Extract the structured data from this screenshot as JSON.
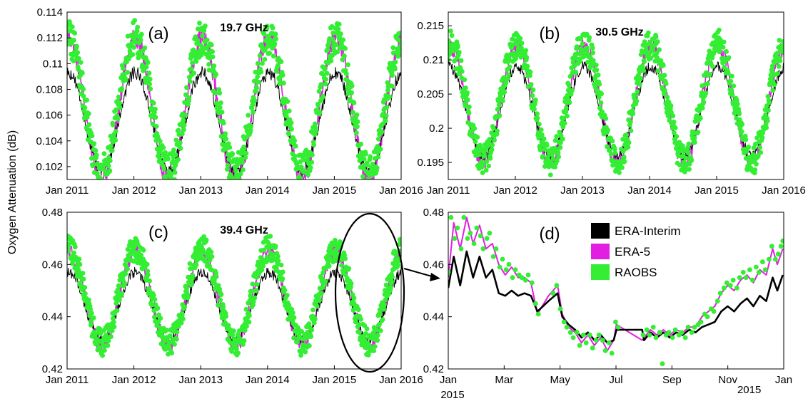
{
  "figure": {
    "ylabel": "Oxygen Attenuation (dB)",
    "colors": {
      "era_interim": "#000000",
      "era5": "#e21ee2",
      "raobs": "#33ee33"
    }
  },
  "chart_data": [
    {
      "id": "a",
      "type": "line",
      "panel_label": "(a)",
      "frequency": "19.7 GHz",
      "xlim": [
        "2011-01-01",
        "2016-01-01"
      ],
      "xticks": [
        "Jan 2011",
        "Jan 2012",
        "Jan 2013",
        "Jan 2014",
        "Jan 2015",
        "Jan 2016"
      ],
      "ylim": [
        0.101,
        0.114
      ],
      "yticks": [
        "0.102",
        "0.104",
        "0.106",
        "0.108",
        "0.11",
        "0.112",
        "0.114"
      ],
      "seasonal": {
        "peak_month": 1.0,
        "era5": {
          "mean": 0.1065,
          "amp": 0.0055,
          "noise": 0.0008
        },
        "erai": {
          "mean": 0.1055,
          "amp": 0.0038,
          "noise": 0.0005
        },
        "raobs": {
          "mean": 0.1068,
          "amp": 0.0052,
          "noise": 0.0014
        }
      },
      "series": [
        {
          "name": "ERA-Interim",
          "color": "#000000"
        },
        {
          "name": "ERA-5",
          "color": "#e21ee2"
        },
        {
          "name": "RAOBS",
          "color": "#33ee33"
        }
      ]
    },
    {
      "id": "b",
      "type": "line",
      "panel_label": "(b)",
      "frequency": "30.5 GHz",
      "xlim": [
        "2011-01-01",
        "2016-01-01"
      ],
      "xticks": [
        "Jan 2011",
        "Jan 2012",
        "Jan 2013",
        "Jan 2014",
        "Jan 2015",
        "Jan 2016"
      ],
      "ylim": [
        0.1925,
        0.217
      ],
      "yticks": [
        "0.195",
        "0.2",
        "0.205",
        "0.21",
        "0.215"
      ],
      "seasonal": {
        "peak_month": 1.0,
        "era5": {
          "mean": 0.2035,
          "amp": 0.0085,
          "noise": 0.0012
        },
        "erai": {
          "mean": 0.2025,
          "amp": 0.0065,
          "noise": 0.0008
        },
        "raobs": {
          "mean": 0.2038,
          "amp": 0.0085,
          "noise": 0.0022
        }
      },
      "series": [
        {
          "name": "ERA-Interim",
          "color": "#000000"
        },
        {
          "name": "ERA-5",
          "color": "#e21ee2"
        },
        {
          "name": "RAOBS",
          "color": "#33ee33"
        }
      ]
    },
    {
      "id": "c",
      "type": "line",
      "panel_label": "(c)",
      "frequency": "39.4 GHz",
      "xlim": [
        "2011-01-01",
        "2016-01-01"
      ],
      "xticks": [
        "Jan 2011",
        "Jan 2012",
        "Jan 2013",
        "Jan 2014",
        "Jan 2015",
        "Jan 2016"
      ],
      "ylim": [
        0.42,
        0.48
      ],
      "yticks": [
        "0.42",
        "0.44",
        "0.46",
        "0.48"
      ],
      "seasonal": {
        "peak_month": 1.0,
        "era5": {
          "mean": 0.447,
          "amp": 0.018,
          "noise": 0.003
        },
        "erai": {
          "mean": 0.444,
          "amp": 0.013,
          "noise": 0.002
        },
        "raobs": {
          "mean": 0.448,
          "amp": 0.018,
          "noise": 0.005
        }
      },
      "series": [
        {
          "name": "ERA-Interim",
          "color": "#000000"
        },
        {
          "name": "ERA-5",
          "color": "#e21ee2"
        },
        {
          "name": "RAOBS",
          "color": "#33ee33"
        }
      ]
    },
    {
      "id": "d",
      "type": "line",
      "panel_label": "(d)",
      "xlim": [
        "2015-01-01",
        "2016-01-01"
      ],
      "xticks": [
        "Jan",
        "Mar",
        "May",
        "Jul",
        "Sep",
        "Nov",
        "Jan"
      ],
      "xticks_sub": [
        "2015",
        "2015"
      ],
      "ylim": [
        0.42,
        0.48
      ],
      "yticks": [
        "0.42",
        "0.44",
        "0.46",
        "0.48"
      ],
      "legend_position": "top-right",
      "series": [
        {
          "name": "ERA-Interim",
          "color": "#000000",
          "points": [
            [
              "2015-01-01",
              0.451
            ],
            [
              "2015-01-07",
              0.463
            ],
            [
              "2015-01-14",
              0.452
            ],
            [
              "2015-01-21",
              0.465
            ],
            [
              "2015-01-28",
              0.455
            ],
            [
              "2015-02-04",
              0.463
            ],
            [
              "2015-02-11",
              0.455
            ],
            [
              "2015-02-18",
              0.458
            ],
            [
              "2015-02-25",
              0.449
            ],
            [
              "2015-03-04",
              0.448
            ],
            [
              "2015-03-11",
              0.45
            ],
            [
              "2015-03-18",
              0.448
            ],
            [
              "2015-03-25",
              0.449
            ],
            [
              "2015-04-01",
              0.448
            ],
            [
              "2015-04-08",
              0.442
            ],
            [
              "2015-04-20",
              0.446
            ],
            [
              "2015-04-30",
              0.449
            ],
            [
              "2015-05-05",
              0.44
            ],
            [
              "2015-05-12",
              0.437
            ],
            [
              "2015-05-19",
              0.435
            ],
            [
              "2015-05-26",
              0.432
            ],
            [
              "2015-06-02",
              0.434
            ],
            [
              "2015-06-09",
              0.431
            ],
            [
              "2015-06-16",
              0.433
            ],
            [
              "2015-06-23",
              0.43
            ],
            [
              "2015-06-30",
              0.431
            ],
            [
              "2015-07-03",
              0.435
            ],
            [
              "2015-07-31",
              0.435
            ],
            [
              "2015-08-02",
              0.431
            ],
            [
              "2015-08-09",
              0.434
            ],
            [
              "2015-08-16",
              0.432
            ],
            [
              "2015-08-23",
              0.434
            ],
            [
              "2015-08-30",
              0.432
            ],
            [
              "2015-09-06",
              0.434
            ],
            [
              "2015-09-13",
              0.433
            ],
            [
              "2015-09-20",
              0.435
            ],
            [
              "2015-09-27",
              0.434
            ],
            [
              "2015-10-04",
              0.436
            ],
            [
              "2015-10-11",
              0.437
            ],
            [
              "2015-10-18",
              0.438
            ],
            [
              "2015-10-25",
              0.442
            ],
            [
              "2015-11-01",
              0.444
            ],
            [
              "2015-11-08",
              0.442
            ],
            [
              "2015-11-15",
              0.445
            ],
            [
              "2015-11-22",
              0.447
            ],
            [
              "2015-11-29",
              0.444
            ],
            [
              "2015-12-06",
              0.448
            ],
            [
              "2015-12-13",
              0.446
            ],
            [
              "2015-12-20",
              0.455
            ],
            [
              "2015-12-25",
              0.45
            ],
            [
              "2015-12-31",
              0.456
            ]
          ]
        },
        {
          "name": "ERA-5",
          "color": "#e21ee2",
          "points": [
            [
              "2015-01-01",
              0.455
            ],
            [
              "2015-01-07",
              0.476
            ],
            [
              "2015-01-14",
              0.466
            ],
            [
              "2015-01-21",
              0.478
            ],
            [
              "2015-01-28",
              0.468
            ],
            [
              "2015-02-04",
              0.475
            ],
            [
              "2015-02-11",
              0.466
            ],
            [
              "2015-02-18",
              0.468
            ],
            [
              "2015-02-25",
              0.46
            ],
            [
              "2015-03-04",
              0.456
            ],
            [
              "2015-03-11",
              0.459
            ],
            [
              "2015-03-18",
              0.455
            ],
            [
              "2015-03-25",
              0.455
            ],
            [
              "2015-04-01",
              0.453
            ],
            [
              "2015-04-08",
              0.441
            ],
            [
              "2015-04-20",
              0.448
            ],
            [
              "2015-04-30",
              0.452
            ],
            [
              "2015-05-05",
              0.441
            ],
            [
              "2015-05-12",
              0.436
            ],
            [
              "2015-05-19",
              0.434
            ],
            [
              "2015-05-26",
              0.43
            ],
            [
              "2015-06-02",
              0.433
            ],
            [
              "2015-06-09",
              0.429
            ],
            [
              "2015-06-16",
              0.432
            ],
            [
              "2015-06-23",
              0.427
            ],
            [
              "2015-06-30",
              0.431
            ],
            [
              "2015-07-03",
              0.437
            ],
            [
              "2015-07-31",
              0.431
            ],
            [
              "2015-08-02",
              0.432
            ],
            [
              "2015-08-09",
              0.435
            ],
            [
              "2015-08-16",
              0.433
            ],
            [
              "2015-08-23",
              0.435
            ],
            [
              "2015-08-30",
              0.433
            ],
            [
              "2015-09-06",
              0.435
            ],
            [
              "2015-09-13",
              0.434
            ],
            [
              "2015-09-20",
              0.436
            ],
            [
              "2015-09-27",
              0.436
            ],
            [
              "2015-10-04",
              0.44
            ],
            [
              "2015-10-11",
              0.442
            ],
            [
              "2015-10-18",
              0.444
            ],
            [
              "2015-10-25",
              0.449
            ],
            [
              "2015-11-01",
              0.452
            ],
            [
              "2015-11-08",
              0.45
            ],
            [
              "2015-11-15",
              0.454
            ],
            [
              "2015-11-22",
              0.456
            ],
            [
              "2015-11-29",
              0.453
            ],
            [
              "2015-12-06",
              0.458
            ],
            [
              "2015-12-13",
              0.456
            ],
            [
              "2015-12-20",
              0.466
            ],
            [
              "2015-12-25",
              0.46
            ],
            [
              "2015-12-31",
              0.466
            ]
          ]
        },
        {
          "name": "RAOBS",
          "color": "#33ee33",
          "points": [
            [
              "2015-01-01",
              0.457
            ],
            [
              "2015-01-04",
              0.478
            ],
            [
              "2015-01-08",
              0.47
            ],
            [
              "2015-01-11",
              0.474
            ],
            [
              "2015-01-15",
              0.466
            ],
            [
              "2015-01-18",
              0.478
            ],
            [
              "2015-01-22",
              0.47
            ],
            [
              "2015-01-25",
              0.472
            ],
            [
              "2015-01-29",
              0.468
            ],
            [
              "2015-02-01",
              0.474
            ],
            [
              "2015-02-05",
              0.471
            ],
            [
              "2015-02-08",
              0.466
            ],
            [
              "2015-02-12",
              0.47
            ],
            [
              "2015-02-15",
              0.472
            ],
            [
              "2015-02-19",
              0.463
            ],
            [
              "2015-02-22",
              0.466
            ],
            [
              "2015-02-26",
              0.459
            ],
            [
              "2015-03-01",
              0.462
            ],
            [
              "2015-03-05",
              0.458
            ],
            [
              "2015-03-08",
              0.46
            ],
            [
              "2015-03-12",
              0.455
            ],
            [
              "2015-03-15",
              0.458
            ],
            [
              "2015-03-19",
              0.456
            ],
            [
              "2015-03-22",
              0.455
            ],
            [
              "2015-03-26",
              0.454
            ],
            [
              "2015-03-29",
              0.456
            ],
            [
              "2015-04-02",
              0.453
            ],
            [
              "2015-04-06",
              0.445
            ],
            [
              "2015-04-09",
              0.441
            ],
            [
              "2015-04-25",
              0.449
            ],
            [
              "2015-04-29",
              0.452
            ],
            [
              "2015-05-03",
              0.443
            ],
            [
              "2015-05-07",
              0.438
            ],
            [
              "2015-05-10",
              0.436
            ],
            [
              "2015-05-14",
              0.434
            ],
            [
              "2015-05-17",
              0.432
            ],
            [
              "2015-05-21",
              0.434
            ],
            [
              "2015-05-24",
              0.429
            ],
            [
              "2015-05-28",
              0.433
            ],
            [
              "2015-05-31",
              0.43
            ],
            [
              "2015-06-04",
              0.433
            ],
            [
              "2015-06-07",
              0.428
            ],
            [
              "2015-06-11",
              0.431
            ],
            [
              "2015-06-14",
              0.433
            ],
            [
              "2015-06-18",
              0.431
            ],
            [
              "2015-06-21",
              0.427
            ],
            [
              "2015-06-25",
              0.43
            ],
            [
              "2015-06-28",
              0.426
            ],
            [
              "2015-07-02",
              0.438
            ],
            [
              "2015-07-05",
              0.436
            ],
            [
              "2015-08-01",
              0.433
            ],
            [
              "2015-08-05",
              0.435
            ],
            [
              "2015-08-08",
              0.433
            ],
            [
              "2015-08-12",
              0.436
            ],
            [
              "2015-08-15",
              0.432
            ],
            [
              "2015-08-19",
              0.434
            ],
            [
              "2015-08-22",
              0.422
            ],
            [
              "2015-08-26",
              0.433
            ],
            [
              "2015-08-29",
              0.434
            ],
            [
              "2015-09-02",
              0.432
            ],
            [
              "2015-09-05",
              0.435
            ],
            [
              "2015-09-09",
              0.433
            ],
            [
              "2015-09-12",
              0.434
            ],
            [
              "2015-09-16",
              0.432
            ],
            [
              "2015-09-19",
              0.436
            ],
            [
              "2015-09-23",
              0.434
            ],
            [
              "2015-09-26",
              0.436
            ],
            [
              "2015-09-30",
              0.437
            ],
            [
              "2015-10-03",
              0.438
            ],
            [
              "2015-10-07",
              0.441
            ],
            [
              "2015-10-10",
              0.44
            ],
            [
              "2015-10-14",
              0.443
            ],
            [
              "2015-10-17",
              0.442
            ],
            [
              "2015-10-21",
              0.446
            ],
            [
              "2015-10-24",
              0.449
            ],
            [
              "2015-10-28",
              0.451
            ],
            [
              "2015-10-31",
              0.453
            ],
            [
              "2015-11-04",
              0.452
            ],
            [
              "2015-11-07",
              0.454
            ],
            [
              "2015-11-11",
              0.451
            ],
            [
              "2015-11-14",
              0.455
            ],
            [
              "2015-11-18",
              0.457
            ],
            [
              "2015-11-21",
              0.455
            ],
            [
              "2015-11-25",
              0.458
            ],
            [
              "2015-11-28",
              0.454
            ],
            [
              "2015-12-02",
              0.459
            ],
            [
              "2015-12-05",
              0.457
            ],
            [
              "2015-12-09",
              0.461
            ],
            [
              "2015-12-12",
              0.458
            ],
            [
              "2015-12-16",
              0.462
            ],
            [
              "2015-12-19",
              0.467
            ],
            [
              "2015-12-23",
              0.462
            ],
            [
              "2015-12-26",
              0.464
            ],
            [
              "2015-12-29",
              0.467
            ],
            [
              "2015-12-31",
              0.469
            ]
          ]
        }
      ]
    }
  ]
}
